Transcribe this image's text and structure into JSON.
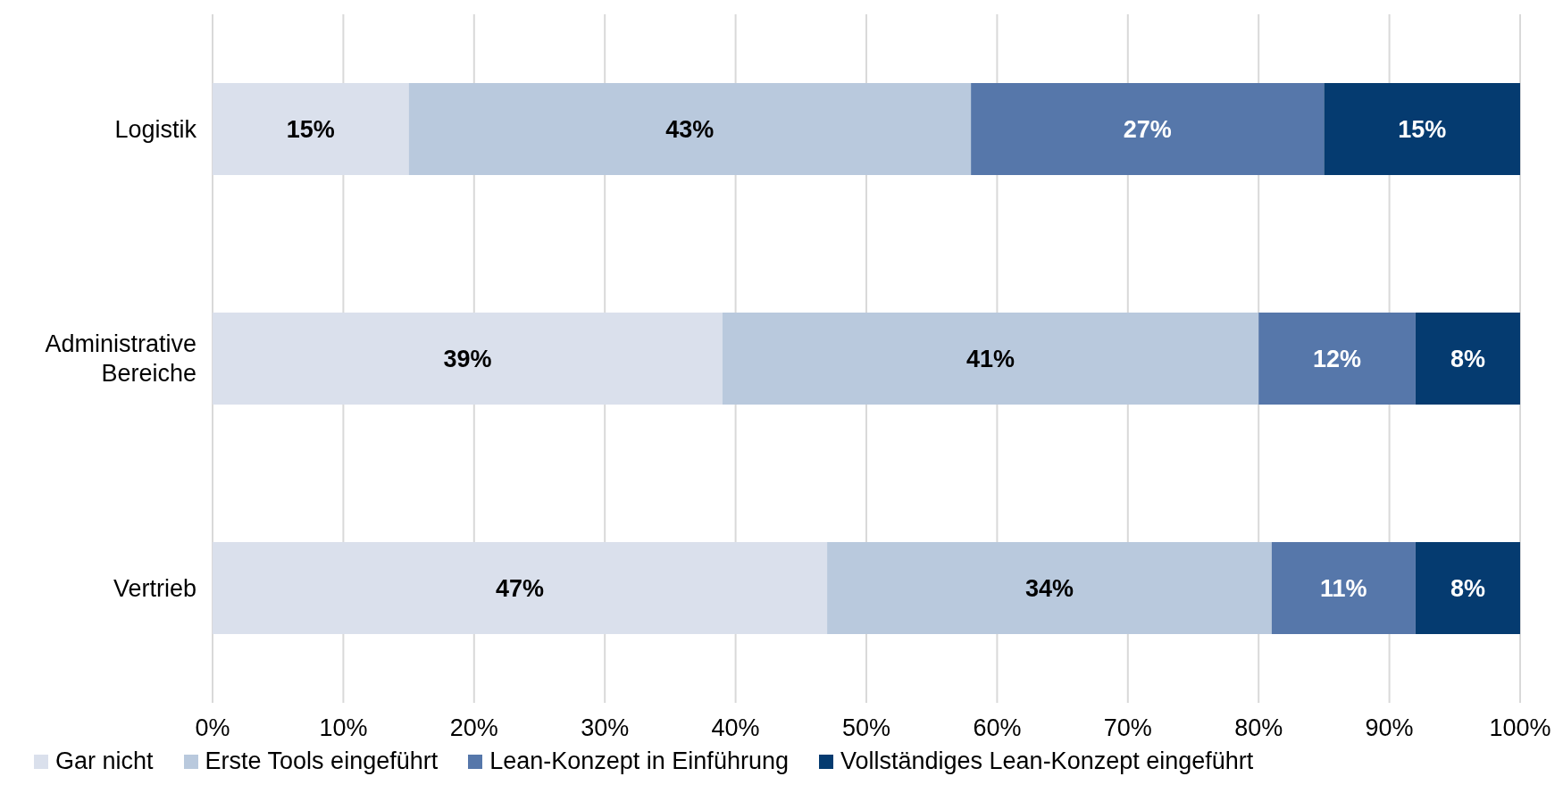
{
  "chart_data": {
    "type": "bar",
    "orientation": "horizontal",
    "stacked": true,
    "categories": [
      "Logistik",
      "Administrative Bereiche",
      "Vertrieb"
    ],
    "series": [
      {
        "name": "Gar nicht",
        "color": "#dae0ec",
        "values": [
          15,
          39,
          47
        ],
        "value_labels": [
          "15%",
          "39%",
          "47%"
        ]
      },
      {
        "name": "Erste Tools eingeführt",
        "color": "#b9c9dd",
        "values": [
          43,
          41,
          34
        ],
        "value_labels": [
          "43%",
          "41%",
          "34%"
        ]
      },
      {
        "name": "Lean-Konzept in Einführung",
        "color": "#5677aa",
        "values": [
          27,
          12,
          11
        ],
        "value_labels": [
          "27%",
          "12%",
          "11%"
        ]
      },
      {
        "name": "Vollständiges Lean-Konzept eingeführt",
        "color": "#053b70",
        "values": [
          15,
          8,
          8
        ],
        "value_labels": [
          "15%",
          "8%",
          "8%"
        ]
      }
    ],
    "xlim": [
      0,
      100
    ],
    "xticks": [
      {
        "value": 0,
        "label": "0%"
      },
      {
        "value": 10,
        "label": "10%"
      },
      {
        "value": 20,
        "label": "20%"
      },
      {
        "value": 30,
        "label": "30%"
      },
      {
        "value": 40,
        "label": "40%"
      },
      {
        "value": 50,
        "label": "50%"
      },
      {
        "value": 60,
        "label": "60%"
      },
      {
        "value": 70,
        "label": "70%"
      },
      {
        "value": 80,
        "label": "80%"
      },
      {
        "value": 90,
        "label": "90%"
      },
      {
        "value": 100,
        "label": "100%"
      }
    ],
    "grid": "x",
    "legend": "bottom"
  }
}
